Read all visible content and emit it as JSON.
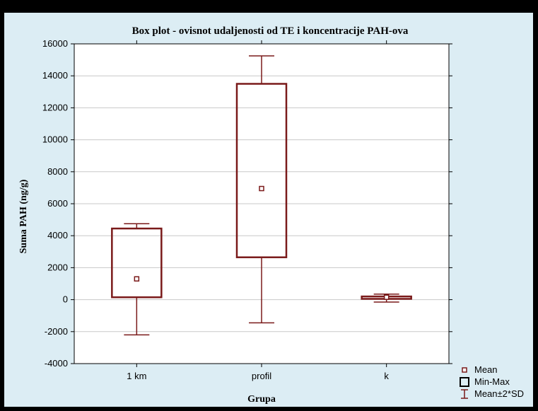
{
  "colors": {
    "background": "#dcedf4",
    "frame": "#000000",
    "plot_background": "#ffffff",
    "grid": "#c8c8c8",
    "series": "#7a1a1a"
  },
  "chart_data": {
    "type": "boxplot",
    "title": "Box plot - ovisnot udaljenosti od TE i koncentracije PAH-ova",
    "xlabel": "Grupa",
    "ylabel": "Suma PAH (ng/g)",
    "ylim": [
      -4000,
      16000
    ],
    "yticks": [
      -4000,
      -2000,
      0,
      2000,
      4000,
      6000,
      8000,
      10000,
      12000,
      14000,
      16000
    ],
    "ytick_labels": [
      "-4000",
      "-2000",
      "0",
      "2000",
      "4000",
      "6000",
      "8000",
      "10000",
      "12000",
      "14000",
      "16000"
    ],
    "grid": "horizontal",
    "legend_position": "bottom-right",
    "categories": [
      "1 km",
      "profil",
      "k"
    ],
    "groups": [
      {
        "name": "1 km",
        "mean": 1300,
        "min": 150,
        "max": 4450,
        "mean_minus_2sd": -2200,
        "mean_plus_2sd": 4750
      },
      {
        "name": "profil",
        "mean": 6950,
        "min": 2650,
        "max": 13500,
        "mean_minus_2sd": -1450,
        "mean_plus_2sd": 15250
      },
      {
        "name": "k",
        "mean": 150,
        "min": 50,
        "max": 200,
        "mean_minus_2sd": -150,
        "mean_plus_2sd": 350
      }
    ],
    "legend": [
      {
        "label": "Mean",
        "symbol": "small-square"
      },
      {
        "label": "Min-Max",
        "symbol": "box"
      },
      {
        "label": "Mean±2*SD",
        "symbol": "whisker"
      }
    ]
  }
}
